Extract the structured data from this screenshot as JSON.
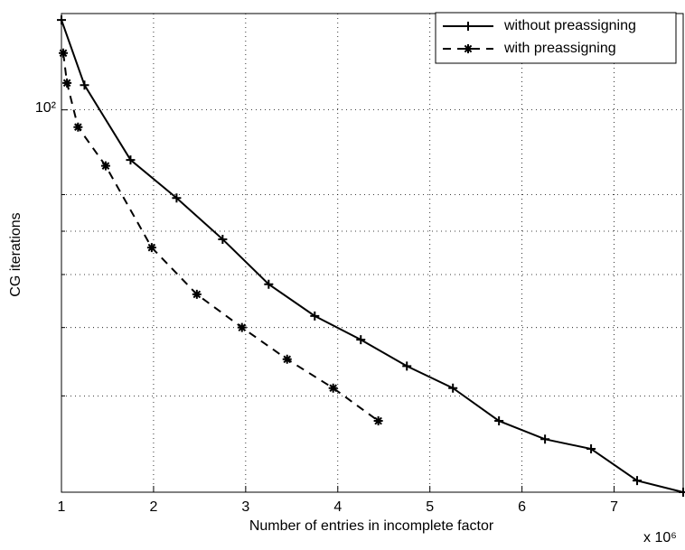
{
  "chart_data": {
    "type": "line",
    "xlabel": "Number of entries in incomplete factor",
    "ylabel": "CG iterations",
    "x_multiplier": "x 10⁶",
    "xlim": [
      1,
      7.75
    ],
    "xticks": [
      1,
      2,
      3,
      4,
      5,
      6,
      7
    ],
    "ylim": [
      20,
      150
    ],
    "yscale": "log",
    "yticks": [
      {
        "value": 100,
        "label": "10²"
      }
    ],
    "yminor": [
      30,
      40,
      50,
      60,
      70
    ],
    "grid": true,
    "legend": "upper right",
    "series": [
      {
        "name": "without preassigning",
        "color": "#000000",
        "style": "solid",
        "marker": "plus",
        "x": [
          1,
          1.25,
          1.75,
          2.25,
          2.75,
          3.25,
          3.75,
          4.25,
          4.75,
          5.25,
          5.75,
          6.25,
          6.75,
          7.25,
          7.75
        ],
        "values": [
          146,
          111,
          81,
          69,
          58,
          48,
          42,
          38,
          34,
          31,
          27,
          25,
          24,
          21,
          20
        ]
      },
      {
        "name": "with preassigning",
        "color": "#000000",
        "style": "dashed",
        "marker": "asterisk",
        "x": [
          1.02,
          1.06,
          1.18,
          1.48,
          1.98,
          2.47,
          2.96,
          3.45,
          3.95,
          4.44
        ],
        "values": [
          127,
          112,
          93,
          79,
          56,
          46,
          40,
          35,
          31,
          27
        ]
      }
    ]
  }
}
